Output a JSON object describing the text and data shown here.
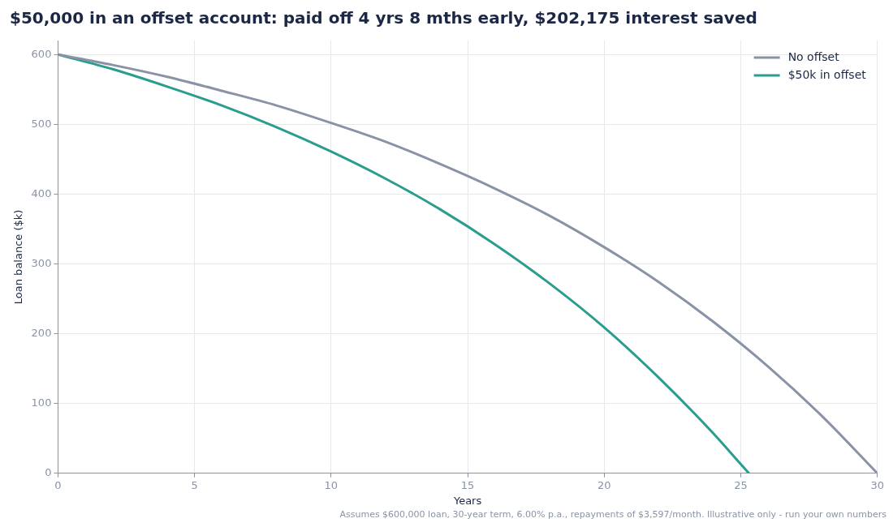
{
  "chart_data": {
    "type": "line",
    "title": "$50,000 in an offset account: paid off 4 yrs 8 mths early, $202,175 interest saved",
    "xlabel": "Years",
    "ylabel": "Loan balance ($k)",
    "series": [
      {
        "name": "No offset",
        "color": "#8a93a6",
        "x": [
          0,
          2,
          4,
          6,
          8,
          10,
          12,
          14,
          16,
          18,
          20,
          22,
          24,
          26,
          28,
          30
        ],
        "values": [
          600,
          585,
          568,
          548,
          527,
          502,
          475,
          443,
          408,
          369,
          324,
          274,
          217,
          153,
          81,
          0
        ]
      },
      {
        "name": "$50k in offset",
        "color": "#2a9d8f",
        "x": [
          0,
          2,
          4,
          6,
          8,
          10,
          12,
          14,
          16,
          18,
          20,
          22,
          24,
          25,
          25.3
        ],
        "values": [
          600,
          579,
          554,
          527,
          496,
          461,
          422,
          378,
          328,
          272,
          209,
          137,
          57,
          13,
          0
        ]
      }
    ],
    "xlim": [
      0,
      30
    ],
    "xticks": [
      0,
      5,
      10,
      15,
      20,
      25,
      30
    ],
    "ylim": [
      0,
      620
    ],
    "yticks": [
      0,
      100,
      200,
      300,
      400,
      500,
      600
    ],
    "grid": true,
    "legend": "top right",
    "marker": "none",
    "line_style": "solid",
    "annotations": [
      "Assumes $600,000 loan, 30-year term, 6.00% p.a., repayments of $3,597/month. Illustrative only - run your own numbers"
    ]
  }
}
